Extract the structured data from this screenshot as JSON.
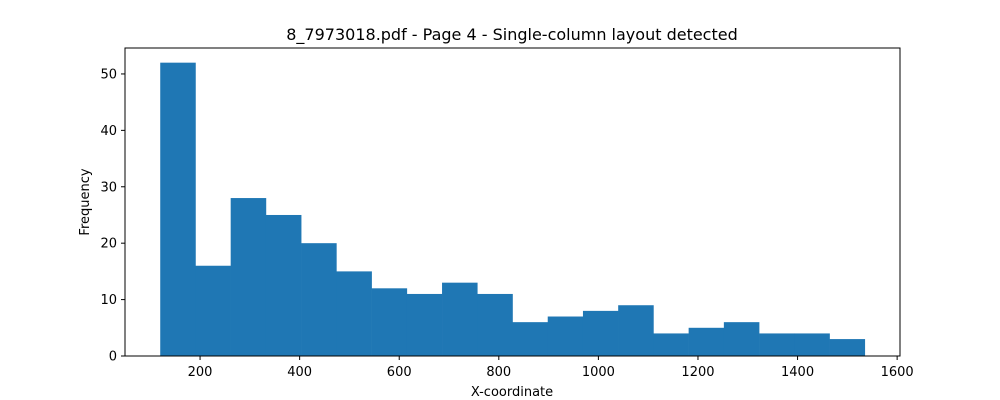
{
  "chart_data": {
    "type": "bar",
    "title": "8_7973018.pdf - Page 4 - Single-column layout detected",
    "xlabel": "X-coordinate",
    "ylabel": "Frequency",
    "bins": [
      {
        "x0": 120.0,
        "x1": 190.75,
        "value": 52
      },
      {
        "x0": 190.75,
        "x1": 261.5,
        "value": 16
      },
      {
        "x0": 261.5,
        "x1": 332.25,
        "value": 28
      },
      {
        "x0": 332.25,
        "x1": 403.0,
        "value": 25
      },
      {
        "x0": 403.0,
        "x1": 473.75,
        "value": 20
      },
      {
        "x0": 473.75,
        "x1": 544.5,
        "value": 15
      },
      {
        "x0": 544.5,
        "x1": 615.25,
        "value": 12
      },
      {
        "x0": 615.25,
        "x1": 686.0,
        "value": 11
      },
      {
        "x0": 686.0,
        "x1": 756.75,
        "value": 13
      },
      {
        "x0": 756.75,
        "x1": 827.5,
        "value": 11
      },
      {
        "x0": 827.5,
        "x1": 898.25,
        "value": 6
      },
      {
        "x0": 898.25,
        "x1": 969.0,
        "value": 7
      },
      {
        "x0": 969.0,
        "x1": 1039.75,
        "value": 8
      },
      {
        "x0": 1039.75,
        "x1": 1110.5,
        "value": 9
      },
      {
        "x0": 1110.5,
        "x1": 1181.25,
        "value": 4
      },
      {
        "x0": 1181.25,
        "x1": 1252.0,
        "value": 5
      },
      {
        "x0": 1252.0,
        "x1": 1322.75,
        "value": 6
      },
      {
        "x0": 1322.75,
        "x1": 1393.5,
        "value": 4
      },
      {
        "x0": 1393.5,
        "x1": 1464.25,
        "value": 4
      },
      {
        "x0": 1464.25,
        "x1": 1535.0,
        "value": 3
      }
    ],
    "xlim": [
      49.25,
      1605.75
    ],
    "ylim": [
      0,
      54.6
    ],
    "xticks": [
      200,
      400,
      600,
      800,
      1000,
      1200,
      1400,
      1600
    ],
    "yticks": [
      0,
      10,
      20,
      30,
      40,
      50
    ],
    "grid": false,
    "bar_color": "#1f77b4"
  }
}
